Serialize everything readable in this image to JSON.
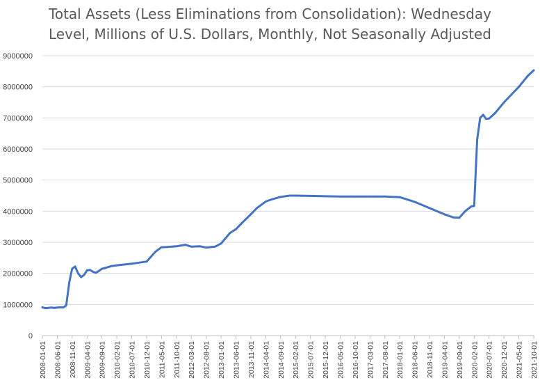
{
  "chart_data": {
    "type": "line",
    "title_line1": "Total Assets (Less Eliminations from Consolidation): Wednesday",
    "title_line2": "Level, Millions of U.S. Dollars, Monthly, Not Seasonally Adjusted",
    "xlabel": "",
    "ylabel": "",
    "ylim": [
      0,
      9000000
    ],
    "yticks": [
      0,
      1000000,
      2000000,
      3000000,
      4000000,
      5000000,
      6000000,
      7000000,
      8000000,
      9000000
    ],
    "ytick_labels": [
      "0",
      "1000000",
      "2000000",
      "3000000",
      "4000000",
      "5000000",
      "6000000",
      "7000000",
      "8000000",
      "9000000"
    ],
    "xtick_labels": [
      "2008-01-01",
      "2008-06-01",
      "2008-11-01",
      "2009-04-01",
      "2009-09-01",
      "2010-02-01",
      "2010-07-01",
      "2010-12-01",
      "2011-05-01",
      "2011-10-01",
      "2012-03-01",
      "2012-08-01",
      "2013-01-01",
      "2013-06-01",
      "2013-11-01",
      "2014-04-01",
      "2014-09-01",
      "2015-02-01",
      "2015-07-01",
      "2015-12-01",
      "2016-05-01",
      "2016-10-01",
      "2017-03-01",
      "2017-08-01",
      "2018-01-01",
      "2018-06-01",
      "2018-11-01",
      "2019-04-01",
      "2019-09-01",
      "2020-02-01",
      "2020-07-01",
      "2020-12-01",
      "2021-05-01",
      "2021-10-01"
    ],
    "grid": true,
    "line_color": "#4472C4",
    "series": [
      {
        "x": [
          "2008-01-01",
          "2008-02-01",
          "2008-03-01",
          "2008-04-01",
          "2008-05-01",
          "2008-06-01",
          "2008-07-01",
          "2008-08-01",
          "2008-09-01",
          "2008-10-01",
          "2008-11-01",
          "2008-12-01",
          "2009-01-01",
          "2009-02-01",
          "2009-03-01",
          "2009-04-01",
          "2009-05-01",
          "2009-06-01",
          "2009-07-01",
          "2009-08-01",
          "2009-09-01",
          "2009-10-01",
          "2009-11-01",
          "2009-12-01",
          "2010-02-01",
          "2010-07-01",
          "2010-12-01",
          "2011-03-01",
          "2011-05-01",
          "2011-07-01",
          "2011-10-01",
          "2012-01-01",
          "2012-03-01",
          "2012-06-01",
          "2012-08-01",
          "2012-11-01",
          "2013-01-01",
          "2013-04-01",
          "2013-06-01",
          "2013-08-01",
          "2013-11-01",
          "2014-01-01",
          "2014-04-01",
          "2014-06-01",
          "2014-09-01",
          "2014-12-01",
          "2015-02-01",
          "2015-07-01",
          "2015-12-01",
          "2016-05-01",
          "2016-10-01",
          "2017-03-01",
          "2017-08-01",
          "2018-01-01",
          "2018-06-01",
          "2018-11-01",
          "2019-04-01",
          "2019-07-01",
          "2019-09-01",
          "2019-11-01",
          "2020-01-01",
          "2020-02-01",
          "2020-03-01",
          "2020-04-01",
          "2020-05-01",
          "2020-06-01",
          "2020-07-01",
          "2020-09-01",
          "2020-12-01",
          "2021-03-01",
          "2021-05-01",
          "2021-08-01",
          "2021-10-01"
        ],
        "values": [
          910000,
          880000,
          890000,
          900000,
          890000,
          900000,
          910000,
          905000,
          970000,
          1700000,
          2150000,
          2220000,
          2000000,
          1880000,
          1950000,
          2100000,
          2110000,
          2050000,
          2020000,
          2080000,
          2150000,
          2170000,
          2200000,
          2230000,
          2260000,
          2310000,
          2380000,
          2700000,
          2840000,
          2850000,
          2870000,
          2920000,
          2860000,
          2870000,
          2830000,
          2860000,
          2960000,
          3300000,
          3420000,
          3620000,
          3900000,
          4100000,
          4310000,
          4380000,
          4460000,
          4500000,
          4500000,
          4490000,
          4480000,
          4470000,
          4470000,
          4470000,
          4470000,
          4450000,
          4300000,
          4100000,
          3900000,
          3800000,
          3790000,
          4000000,
          4150000,
          4170000,
          6300000,
          7000000,
          7100000,
          6970000,
          6980000,
          7150000,
          7500000,
          7800000,
          8000000,
          8350000,
          8530000
        ]
      }
    ]
  }
}
